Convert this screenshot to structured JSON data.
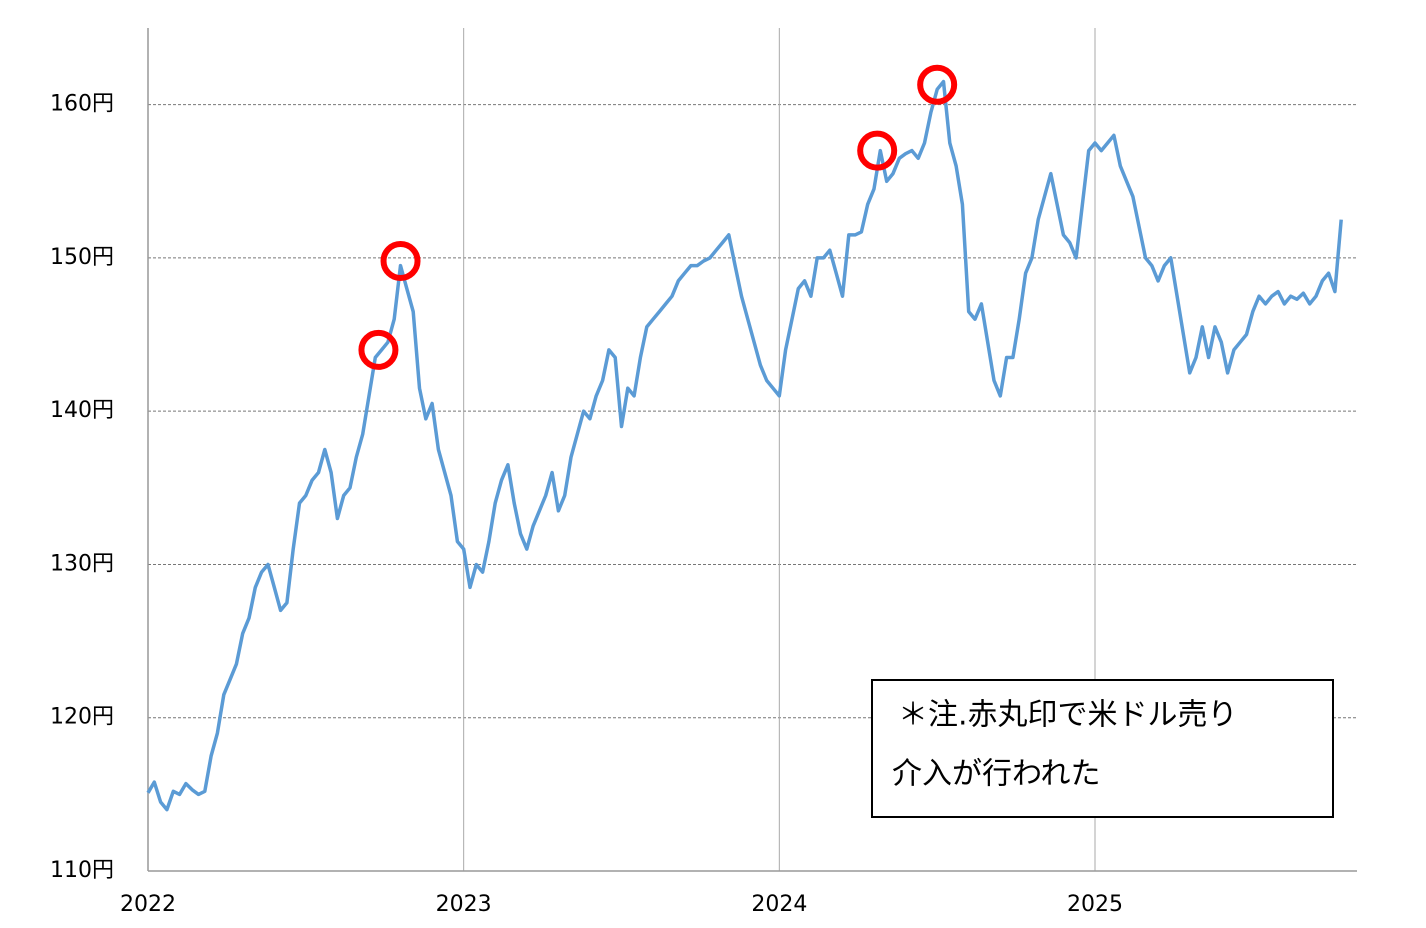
{
  "chart_data": {
    "type": "line",
    "x": [
      2022.0,
      2022.02,
      2022.04,
      2022.06,
      2022.08,
      2022.1,
      2022.12,
      2022.14,
      2022.16,
      2022.18,
      2022.2,
      2022.22,
      2022.24,
      2022.26,
      2022.28,
      2022.3,
      2022.32,
      2022.34,
      2022.36,
      2022.38,
      2022.4,
      2022.42,
      2022.44,
      2022.46,
      2022.48,
      2022.5,
      2022.52,
      2022.54,
      2022.56,
      2022.58,
      2022.6,
      2022.62,
      2022.64,
      2022.66,
      2022.68,
      2022.7,
      2022.72,
      2022.74,
      2022.76,
      2022.78,
      2022.8,
      2022.82,
      2022.84,
      2022.86,
      2022.88,
      2022.9,
      2022.92,
      2022.94,
      2022.96,
      2022.98,
      2023.0,
      2023.02,
      2023.04,
      2023.06,
      2023.08,
      2023.1,
      2023.12,
      2023.14,
      2023.16,
      2023.18,
      2023.2,
      2023.22,
      2023.24,
      2023.26,
      2023.28,
      2023.3,
      2023.32,
      2023.34,
      2023.36,
      2023.38,
      2023.4,
      2023.42,
      2023.44,
      2023.46,
      2023.48,
      2023.5,
      2023.52,
      2023.54,
      2023.56,
      2023.58,
      2023.6,
      2023.62,
      2023.64,
      2023.66,
      2023.68,
      2023.7,
      2023.72,
      2023.74,
      2023.76,
      2023.78,
      2023.8,
      2023.82,
      2023.84,
      2023.86,
      2023.88,
      2023.9,
      2023.92,
      2023.94,
      2023.96,
      2023.98,
      2024.0,
      2024.02,
      2024.04,
      2024.06,
      2024.08,
      2024.1,
      2024.12,
      2024.14,
      2024.16,
      2024.18,
      2024.2,
      2024.22,
      2024.24,
      2024.26,
      2024.28,
      2024.3,
      2024.32,
      2024.34,
      2024.36,
      2024.38,
      2024.4,
      2024.42,
      2024.44,
      2024.46,
      2024.48,
      2024.5,
      2024.52,
      2024.54,
      2024.56,
      2024.58,
      2024.6,
      2024.62,
      2024.64,
      2024.66,
      2024.68,
      2024.7,
      2024.72,
      2024.74,
      2024.76,
      2024.78,
      2024.8,
      2024.82,
      2024.84,
      2024.86,
      2024.88,
      2024.9,
      2024.92,
      2024.94,
      2024.96,
      2024.98,
      2025.0,
      2025.02,
      2025.04,
      2025.06,
      2025.08,
      2025.1,
      2025.12,
      2025.14,
      2025.16,
      2025.18,
      2025.2,
      2025.22,
      2025.24,
      2025.26,
      2025.28,
      2025.3,
      2025.32,
      2025.34,
      2025.36,
      2025.38,
      2025.4,
      2025.42,
      2025.44,
      2025.46,
      2025.48,
      2025.5,
      2025.52,
      2025.54,
      2025.56,
      2025.58,
      2025.6,
      2025.62,
      2025.64,
      2025.66,
      2025.68,
      2025.7,
      2025.72,
      2025.74,
      2025.76,
      2025.78
    ],
    "series": [
      {
        "color": "#5b9bd5",
        "values": [
          115.1,
          115.8,
          114.5,
          114.0,
          115.2,
          115.0,
          115.7,
          115.3,
          115.0,
          115.2,
          117.5,
          119.0,
          121.5,
          122.5,
          123.5,
          125.5,
          126.5,
          128.5,
          129.5,
          130.0,
          128.5,
          127.0,
          127.5,
          131.0,
          134.0,
          134.5,
          135.5,
          136.0,
          137.5,
          136.0,
          133.0,
          134.5,
          135.0,
          137.0,
          138.5,
          141.0,
          143.5,
          144.0,
          144.5,
          146.0,
          149.5,
          148.0,
          146.5,
          141.5,
          139.5,
          140.5,
          137.5,
          136.0,
          134.5,
          131.5,
          131.0,
          128.5,
          130.0,
          129.5,
          131.5,
          134.0,
          135.5,
          136.5,
          134.0,
          132.0,
          131.0,
          132.5,
          133.5,
          134.5,
          136.0,
          133.5,
          134.5,
          137.0,
          138.5,
          140.0,
          139.5,
          141.0,
          142.0,
          144.0,
          143.5,
          139.0,
          141.5,
          141.0,
          143.5,
          145.5,
          146.0,
          146.5,
          147.0,
          147.5,
          148.5,
          149.0,
          149.5,
          149.5,
          149.8,
          150.0,
          150.5,
          151.0,
          151.5,
          149.5,
          147.5,
          146.0,
          144.5,
          143.0,
          142.0,
          141.5,
          141.0,
          144.0,
          146.0,
          148.0,
          148.5,
          147.5,
          150.0,
          150.0,
          150.5,
          149.0,
          147.5,
          151.5,
          151.5,
          151.7,
          153.5,
          154.5,
          157.0,
          155.0,
          155.5,
          156.5,
          156.8,
          157.0,
          156.5,
          157.5,
          159.5,
          161.0,
          161.5,
          157.5,
          156.0,
          153.5,
          146.5,
          146.0,
          147.0,
          144.5,
          142.0,
          141.0,
          143.5,
          143.5,
          146.0,
          149.0,
          150.0,
          152.5,
          154.0,
          155.5,
          153.5,
          151.5,
          151.0,
          150.0,
          153.5,
          157.0,
          157.5,
          157.0,
          157.5,
          158.0,
          156.0,
          155.0,
          154.0,
          152.0,
          150.0,
          149.5,
          148.5,
          149.5,
          150.0,
          147.5,
          145.0,
          142.5,
          143.5,
          145.5,
          143.5,
          145.5,
          144.5,
          142.5,
          144.0,
          144.5,
          145.0,
          146.5,
          147.5,
          147.0,
          147.5,
          147.8,
          147.0,
          147.5,
          147.3,
          147.7,
          147.0,
          147.5,
          148.5,
          149.0,
          147.8,
          152.5
        ]
      }
    ],
    "interventions": {
      "color": "#ff0000",
      "x": [
        2022.73,
        2022.8,
        2024.31,
        2024.5
      ],
      "y": [
        144.0,
        149.8,
        157.0,
        161.3
      ]
    },
    "annotation": [
      "＊注.赤丸印で米ドル売り",
      "介入が行われた"
    ],
    "xlim": [
      2022,
      2025.83
    ],
    "xticks": [
      2022,
      2023,
      2024,
      2025
    ],
    "ylim": [
      110,
      165
    ],
    "yticks": [
      {
        "value": 110,
        "label": "110円"
      },
      {
        "value": 120,
        "label": "120円"
      },
      {
        "value": 130,
        "label": "130円"
      },
      {
        "value": 140,
        "label": "140円"
      },
      {
        "value": 150,
        "label": "150円"
      },
      {
        "value": 160,
        "label": "160円"
      }
    ],
    "grid": true
  }
}
